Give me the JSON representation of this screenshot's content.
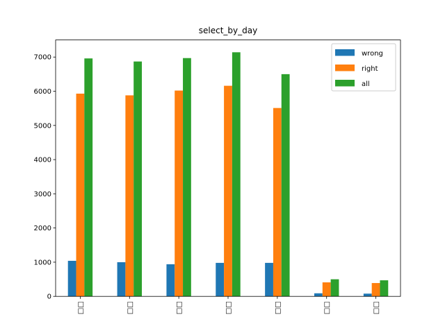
{
  "chart_data": {
    "type": "bar",
    "title": "select_by_day",
    "xlabel": "",
    "ylabel": "",
    "categories": [
      "□□",
      "□□",
      "□□",
      "□□",
      "□□",
      "□□",
      "□□"
    ],
    "series": [
      {
        "name": "wrong",
        "color": "#1f77b4",
        "values": [
          1040,
          1000,
          940,
          980,
          980,
          90,
          80
        ]
      },
      {
        "name": "right",
        "color": "#ff7f0e",
        "values": [
          5930,
          5880,
          6020,
          6160,
          5510,
          410,
          390
        ]
      },
      {
        "name": "all",
        "color": "#2ca02c",
        "values": [
          6960,
          6870,
          6970,
          7140,
          6500,
          500,
          470
        ]
      }
    ],
    "ylim": [
      0,
      7500
    ],
    "yticks": [
      0,
      1000,
      2000,
      3000,
      4000,
      5000,
      6000,
      7000
    ],
    "legend_position": "top-right",
    "grid": false
  }
}
